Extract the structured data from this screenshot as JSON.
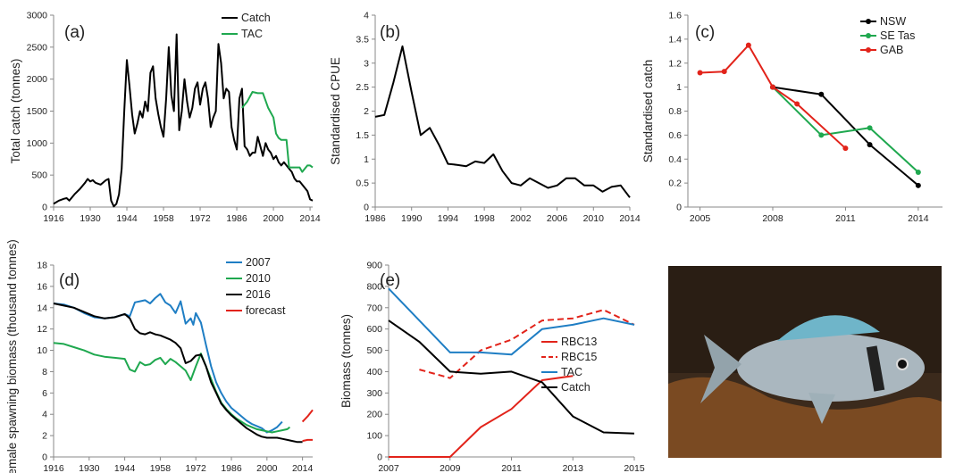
{
  "chart_data": [
    {
      "panel": "(a)",
      "type": "line",
      "ylabel": "Total catch (tonnes)",
      "xlabel": "",
      "xlim": [
        1916,
        2015
      ],
      "ylim": [
        0,
        3000
      ],
      "yticks": [
        0,
        500,
        1000,
        1500,
        2000,
        2500,
        3000
      ],
      "xticks": [
        1916,
        1930,
        1944,
        1958,
        1972,
        1986,
        2000,
        2014
      ],
      "legend_position": "top-right",
      "series": [
        {
          "name": "Catch",
          "color": "#000000",
          "x": [
            1916,
            1918,
            1920,
            1921,
            1922,
            1924,
            1926,
            1928,
            1929,
            1930,
            1931,
            1932,
            1934,
            1936,
            1937,
            1938,
            1939,
            1940,
            1941,
            1942,
            1943,
            1944,
            1945,
            1946,
            1947,
            1948,
            1949,
            1950,
            1951,
            1952,
            1953,
            1954,
            1955,
            1956,
            1957,
            1958,
            1959,
            1960,
            1961,
            1962,
            1963,
            1964,
            1965,
            1966,
            1967,
            1968,
            1969,
            1970,
            1971,
            1972,
            1973,
            1974,
            1975,
            1976,
            1977,
            1978,
            1979,
            1980,
            1981,
            1982,
            1983,
            1984,
            1985,
            1986,
            1987,
            1988,
            1989,
            1990,
            1991,
            1992,
            1993,
            1994,
            1995,
            1996,
            1997,
            1998,
            1999,
            2000,
            2001,
            2002,
            2003,
            2004,
            2005,
            2006,
            2007,
            2008,
            2009,
            2010,
            2011,
            2012,
            2013,
            2014,
            2015
          ],
          "y": [
            50,
            100,
            130,
            140,
            100,
            200,
            280,
            380,
            440,
            400,
            420,
            380,
            350,
            420,
            440,
            100,
            10,
            50,
            200,
            600,
            1500,
            2300,
            1900,
            1450,
            1150,
            1300,
            1500,
            1400,
            1650,
            1500,
            2100,
            2200,
            1700,
            1450,
            1250,
            1100,
            1700,
            2500,
            1750,
            1500,
            2700,
            1200,
            1500,
            2000,
            1650,
            1400,
            1550,
            1850,
            1950,
            1600,
            1850,
            1950,
            1700,
            1250,
            1400,
            1500,
            2550,
            2250,
            1700,
            1850,
            1800,
            1250,
            1050,
            900,
            1700,
            1850,
            950,
            900,
            800,
            850,
            850,
            1100,
            950,
            800,
            1000,
            900,
            850,
            750,
            800,
            700,
            650,
            700,
            650,
            600,
            550,
            450,
            400,
            400,
            350,
            300,
            250,
            120,
            100
          ]
        },
        {
          "name": "TAC",
          "color": "#1fa84f",
          "x": [
            1988,
            1990,
            1992,
            1994,
            1996,
            1998,
            2000,
            2001,
            2002,
            2003,
            2004,
            2005,
            2006,
            2007,
            2008,
            2009,
            2010,
            2011,
            2012,
            2013,
            2014,
            2015
          ],
          "y": [
            1550,
            1650,
            1800,
            1780,
            1780,
            1550,
            1400,
            1150,
            1080,
            1050,
            1050,
            1050,
            620,
            620,
            620,
            620,
            620,
            550,
            600,
            650,
            650,
            620
          ]
        }
      ]
    },
    {
      "panel": "(b)",
      "type": "line",
      "ylabel": "Standardised CPUE",
      "xlabel": "",
      "xlim": [
        1986,
        2014
      ],
      "ylim": [
        0,
        4
      ],
      "yticks": [
        0,
        0.5,
        1,
        1.5,
        2,
        2.5,
        3,
        3.5,
        4
      ],
      "xticks": [
        1986,
        1990,
        1994,
        1998,
        2002,
        2006,
        2010,
        2014
      ],
      "series": [
        {
          "name": "",
          "color": "#000000",
          "x": [
            1986,
            1987,
            1988,
            1989,
            1990,
            1991,
            1992,
            1993,
            1994,
            1995,
            1996,
            1997,
            1998,
            1999,
            2000,
            2001,
            2002,
            2003,
            2004,
            2005,
            2006,
            2007,
            2008,
            2009,
            2010,
            2011,
            2012,
            2013,
            2014
          ],
          "y": [
            1.88,
            1.92,
            2.6,
            3.35,
            2.4,
            1.5,
            1.65,
            1.3,
            0.9,
            0.88,
            0.85,
            0.95,
            0.92,
            1.1,
            0.75,
            0.5,
            0.45,
            0.6,
            0.5,
            0.4,
            0.45,
            0.6,
            0.6,
            0.45,
            0.45,
            0.32,
            0.42,
            0.45,
            0.2
          ]
        }
      ]
    },
    {
      "panel": "(c)",
      "type": "line",
      "ylabel": "Standardised catch",
      "xlabel": "",
      "xlim": [
        2004.5,
        2015
      ],
      "ylim": [
        0,
        1.6
      ],
      "yticks": [
        0,
        0.2,
        0.4,
        0.6,
        0.8,
        1,
        1.2,
        1.4,
        1.6
      ],
      "xticks": [
        2005,
        2008,
        2011,
        2014
      ],
      "legend_position": "top-right",
      "series": [
        {
          "name": "NSW",
          "color": "#000000",
          "x": [
            2008,
            2010,
            2012,
            2014
          ],
          "y": [
            1.0,
            0.94,
            0.52,
            0.18
          ]
        },
        {
          "name": "SE Tas",
          "color": "#1fa84f",
          "x": [
            2008,
            2010,
            2012,
            2014
          ],
          "y": [
            1.0,
            0.6,
            0.66,
            0.29
          ]
        },
        {
          "name": "GAB",
          "color": "#e2231a",
          "x": [
            2005,
            2006,
            2007,
            2008,
            2009,
            2011
          ],
          "y": [
            1.12,
            1.13,
            1.35,
            1.0,
            0.86,
            0.49
          ]
        }
      ]
    },
    {
      "panel": "(d)",
      "type": "line",
      "ylabel": "Female spawning biomass (thousand tonnes)",
      "xlabel": "",
      "xlim": [
        1916,
        2018
      ],
      "ylim": [
        0,
        18
      ],
      "yticks": [
        0,
        2,
        4,
        6,
        8,
        10,
        12,
        14,
        16,
        18
      ],
      "xticks": [
        1916,
        1930,
        1944,
        1958,
        1972,
        1986,
        2000,
        2014
      ],
      "legend_position": "top-right",
      "series": [
        {
          "name": "2007",
          "color": "#1f7ec4",
          "x": [
            1916,
            1920,
            1924,
            1928,
            1932,
            1936,
            1940,
            1944,
            1946,
            1948,
            1950,
            1952,
            1954,
            1956,
            1958,
            1960,
            1962,
            1964,
            1966,
            1968,
            1970,
            1971,
            1972,
            1974,
            1976,
            1978,
            1980,
            1982,
            1984,
            1986,
            1988,
            1990,
            1992,
            1994,
            1996,
            1998,
            2000,
            2002,
            2004,
            2006
          ],
          "y": [
            14.4,
            14.3,
            14.0,
            13.5,
            13.1,
            13.0,
            13.1,
            13.4,
            13.2,
            14.5,
            14.6,
            14.7,
            14.4,
            14.9,
            15.3,
            14.5,
            14.2,
            13.5,
            14.6,
            12.5,
            13.0,
            12.4,
            13.5,
            12.6,
            10.5,
            8.5,
            7.0,
            6.0,
            5.2,
            4.6,
            4.2,
            3.8,
            3.4,
            3.1,
            2.9,
            2.7,
            2.3,
            2.5,
            2.8,
            3.3
          ]
        },
        {
          "name": "2010",
          "color": "#1fa84f",
          "x": [
            1916,
            1920,
            1924,
            1928,
            1932,
            1936,
            1940,
            1944,
            1946,
            1948,
            1950,
            1952,
            1954,
            1956,
            1958,
            1960,
            1962,
            1964,
            1966,
            1968,
            1970,
            1972,
            1974,
            1976,
            1978,
            1980,
            1982,
            1984,
            1986,
            1988,
            1990,
            1992,
            1994,
            1996,
            1998,
            2000,
            2002,
            2004,
            2006,
            2008,
            2009
          ],
          "y": [
            10.7,
            10.6,
            10.3,
            10.0,
            9.6,
            9.4,
            9.3,
            9.2,
            8.2,
            8.0,
            8.9,
            8.6,
            8.7,
            9.1,
            9.3,
            8.7,
            9.2,
            8.9,
            8.5,
            8.1,
            7.2,
            8.5,
            9.7,
            8.5,
            7.3,
            6.1,
            5.1,
            4.5,
            4.0,
            3.6,
            3.3,
            3.0,
            2.8,
            2.6,
            2.5,
            2.4,
            2.3,
            2.4,
            2.5,
            2.6,
            2.8
          ]
        },
        {
          "name": "2016",
          "color": "#000000",
          "x": [
            1916,
            1920,
            1924,
            1928,
            1932,
            1936,
            1940,
            1944,
            1946,
            1948,
            1950,
            1952,
            1954,
            1956,
            1958,
            1960,
            1962,
            1964,
            1966,
            1968,
            1970,
            1972,
            1974,
            1976,
            1978,
            1980,
            1982,
            1984,
            1986,
            1988,
            1990,
            1992,
            1994,
            1996,
            1998,
            2000,
            2002,
            2004,
            2006,
            2008,
            2010,
            2012,
            2014
          ],
          "y": [
            14.4,
            14.2,
            14.0,
            13.6,
            13.2,
            13.0,
            13.1,
            13.4,
            13.0,
            12.0,
            11.6,
            11.5,
            11.7,
            11.5,
            11.4,
            11.2,
            11.0,
            10.7,
            10.2,
            8.8,
            9.0,
            9.5,
            9.6,
            8.5,
            7.0,
            6.0,
            5.0,
            4.4,
            3.9,
            3.5,
            3.1,
            2.7,
            2.4,
            2.1,
            1.9,
            1.8,
            1.8,
            1.8,
            1.7,
            1.6,
            1.5,
            1.4,
            1.4
          ]
        },
        {
          "name": "forecast",
          "color": "#e2231a",
          "x": [
            2014,
            2016,
            2018
          ],
          "y": [
            3.3,
            3.8,
            4.4
          ]
        },
        {
          "name": "",
          "color": "#e2231a",
          "x": [
            2014,
            2016,
            2018
          ],
          "y": [
            1.5,
            1.6,
            1.6
          ]
        }
      ]
    },
    {
      "panel": "(e)",
      "type": "line",
      "ylabel": "Biomass (tonnes)",
      "xlabel": "",
      "xlim": [
        2007,
        2015
      ],
      "ylim": [
        0,
        900
      ],
      "yticks": [
        0,
        100,
        200,
        300,
        400,
        500,
        600,
        700,
        800,
        900
      ],
      "xticks": [
        2007,
        2009,
        2011,
        2013,
        2015
      ],
      "legend_position": "right",
      "series": [
        {
          "name": "RBC13",
          "color": "#e2231a",
          "dash": false,
          "x": [
            2007,
            2009,
            2010,
            2011,
            2012,
            2013
          ],
          "y": [
            0,
            0,
            140,
            225,
            360,
            380
          ]
        },
        {
          "name": "RBC15",
          "color": "#e2231a",
          "dash": true,
          "x": [
            2008,
            2009,
            2010,
            2011,
            2012,
            2013,
            2014,
            2015
          ],
          "y": [
            410,
            370,
            500,
            550,
            640,
            650,
            690,
            620
          ]
        },
        {
          "name": "TAC",
          "color": "#1f7ec4",
          "dash": false,
          "x": [
            2007,
            2009,
            2010,
            2011,
            2012,
            2013,
            2014,
            2015
          ],
          "y": [
            790,
            490,
            490,
            480,
            600,
            620,
            650,
            620
          ]
        },
        {
          "name": "Catch",
          "color": "#000000",
          "dash": false,
          "x": [
            2007,
            2008,
            2009,
            2010,
            2011,
            2012,
            2013,
            2014,
            2015
          ],
          "y": [
            640,
            540,
            400,
            390,
            400,
            350,
            190,
            115,
            110
          ]
        }
      ]
    }
  ]
}
